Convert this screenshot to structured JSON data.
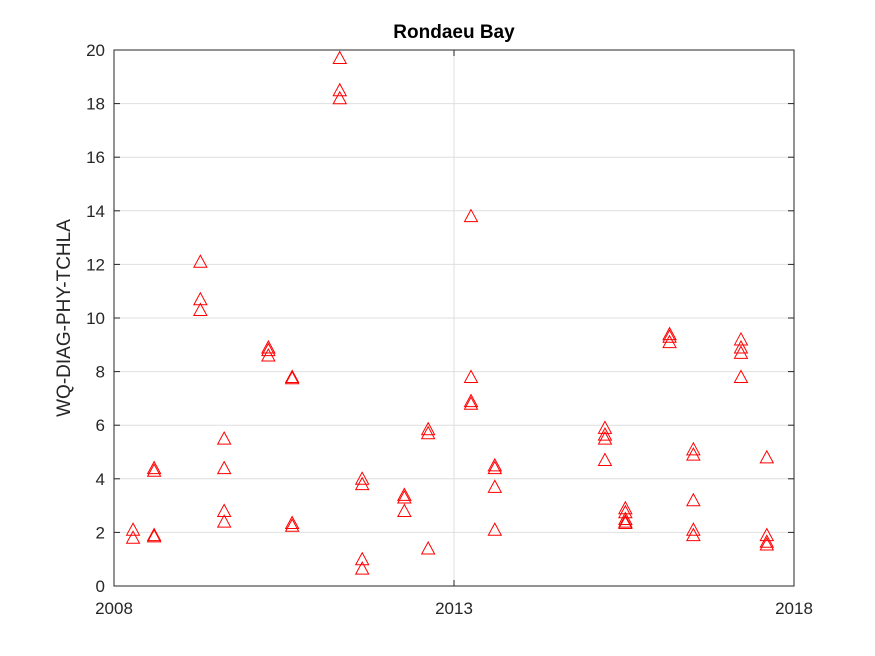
{
  "chart_data": {
    "type": "scatter",
    "title": "Rondaeu Bay",
    "xlabel": "",
    "ylabel": "WQ-DIAG-PHY-TCHLA",
    "xlim": [
      2008,
      2018
    ],
    "ylim": [
      0,
      20
    ],
    "x_ticks": [
      "2008",
      "2013",
      "2018"
    ],
    "x_tick_values": [
      2008,
      2013,
      2018
    ],
    "y_ticks": [
      "0",
      "2",
      "4",
      "6",
      "8",
      "10",
      "12",
      "14",
      "16",
      "18",
      "20"
    ],
    "y_tick_values": [
      0,
      2,
      4,
      6,
      8,
      10,
      12,
      14,
      16,
      18,
      20
    ],
    "grid": true,
    "marker": "triangle",
    "marker_color": "#ff0000",
    "series": [
      {
        "points": [
          {
            "x": 2008.28,
            "y": 2.1
          },
          {
            "x": 2008.28,
            "y": 1.8
          },
          {
            "x": 2008.59,
            "y": 4.4
          },
          {
            "x": 2008.59,
            "y": 4.3
          },
          {
            "x": 2008.59,
            "y": 1.9
          },
          {
            "x": 2008.59,
            "y": 1.85
          },
          {
            "x": 2009.27,
            "y": 12.1
          },
          {
            "x": 2009.27,
            "y": 10.7
          },
          {
            "x": 2009.27,
            "y": 10.3
          },
          {
            "x": 2009.62,
            "y": 5.5
          },
          {
            "x": 2009.62,
            "y": 4.4
          },
          {
            "x": 2009.62,
            "y": 2.8
          },
          {
            "x": 2009.62,
            "y": 2.4
          },
          {
            "x": 2010.27,
            "y": 8.9
          },
          {
            "x": 2010.27,
            "y": 8.8
          },
          {
            "x": 2010.27,
            "y": 8.6
          },
          {
            "x": 2010.62,
            "y": 7.8
          },
          {
            "x": 2010.62,
            "y": 7.75
          },
          {
            "x": 2010.62,
            "y": 2.35
          },
          {
            "x": 2010.62,
            "y": 2.25
          },
          {
            "x": 2011.32,
            "y": 19.7
          },
          {
            "x": 2011.32,
            "y": 18.5
          },
          {
            "x": 2011.32,
            "y": 18.2
          },
          {
            "x": 2011.65,
            "y": 4.0
          },
          {
            "x": 2011.65,
            "y": 3.8
          },
          {
            "x": 2011.65,
            "y": 1.0
          },
          {
            "x": 2011.65,
            "y": 0.65
          },
          {
            "x": 2012.27,
            "y": 3.4
          },
          {
            "x": 2012.27,
            "y": 3.3
          },
          {
            "x": 2012.27,
            "y": 2.8
          },
          {
            "x": 2012.62,
            "y": 5.85
          },
          {
            "x": 2012.62,
            "y": 5.7
          },
          {
            "x": 2012.62,
            "y": 1.4
          },
          {
            "x": 2013.25,
            "y": 13.8
          },
          {
            "x": 2013.25,
            "y": 7.8
          },
          {
            "x": 2013.25,
            "y": 6.9
          },
          {
            "x": 2013.25,
            "y": 6.8
          },
          {
            "x": 2013.6,
            "y": 4.5
          },
          {
            "x": 2013.6,
            "y": 4.4
          },
          {
            "x": 2013.6,
            "y": 3.7
          },
          {
            "x": 2013.6,
            "y": 2.1
          },
          {
            "x": 2015.22,
            "y": 5.9
          },
          {
            "x": 2015.22,
            "y": 5.65
          },
          {
            "x": 2015.22,
            "y": 5.5
          },
          {
            "x": 2015.22,
            "y": 4.7
          },
          {
            "x": 2015.52,
            "y": 2.9
          },
          {
            "x": 2015.52,
            "y": 2.75
          },
          {
            "x": 2015.52,
            "y": 2.5
          },
          {
            "x": 2015.52,
            "y": 2.4
          },
          {
            "x": 2015.52,
            "y": 2.35
          },
          {
            "x": 2016.17,
            "y": 9.4
          },
          {
            "x": 2016.17,
            "y": 9.3
          },
          {
            "x": 2016.17,
            "y": 9.1
          },
          {
            "x": 2016.52,
            "y": 5.1
          },
          {
            "x": 2016.52,
            "y": 4.9
          },
          {
            "x": 2016.52,
            "y": 3.2
          },
          {
            "x": 2016.52,
            "y": 2.1
          },
          {
            "x": 2016.52,
            "y": 1.9
          },
          {
            "x": 2017.22,
            "y": 9.2
          },
          {
            "x": 2017.22,
            "y": 8.9
          },
          {
            "x": 2017.22,
            "y": 8.7
          },
          {
            "x": 2017.22,
            "y": 7.8
          },
          {
            "x": 2017.6,
            "y": 4.8
          },
          {
            "x": 2017.6,
            "y": 1.9
          },
          {
            "x": 2017.6,
            "y": 1.65
          },
          {
            "x": 2017.6,
            "y": 1.55
          }
        ]
      }
    ]
  }
}
